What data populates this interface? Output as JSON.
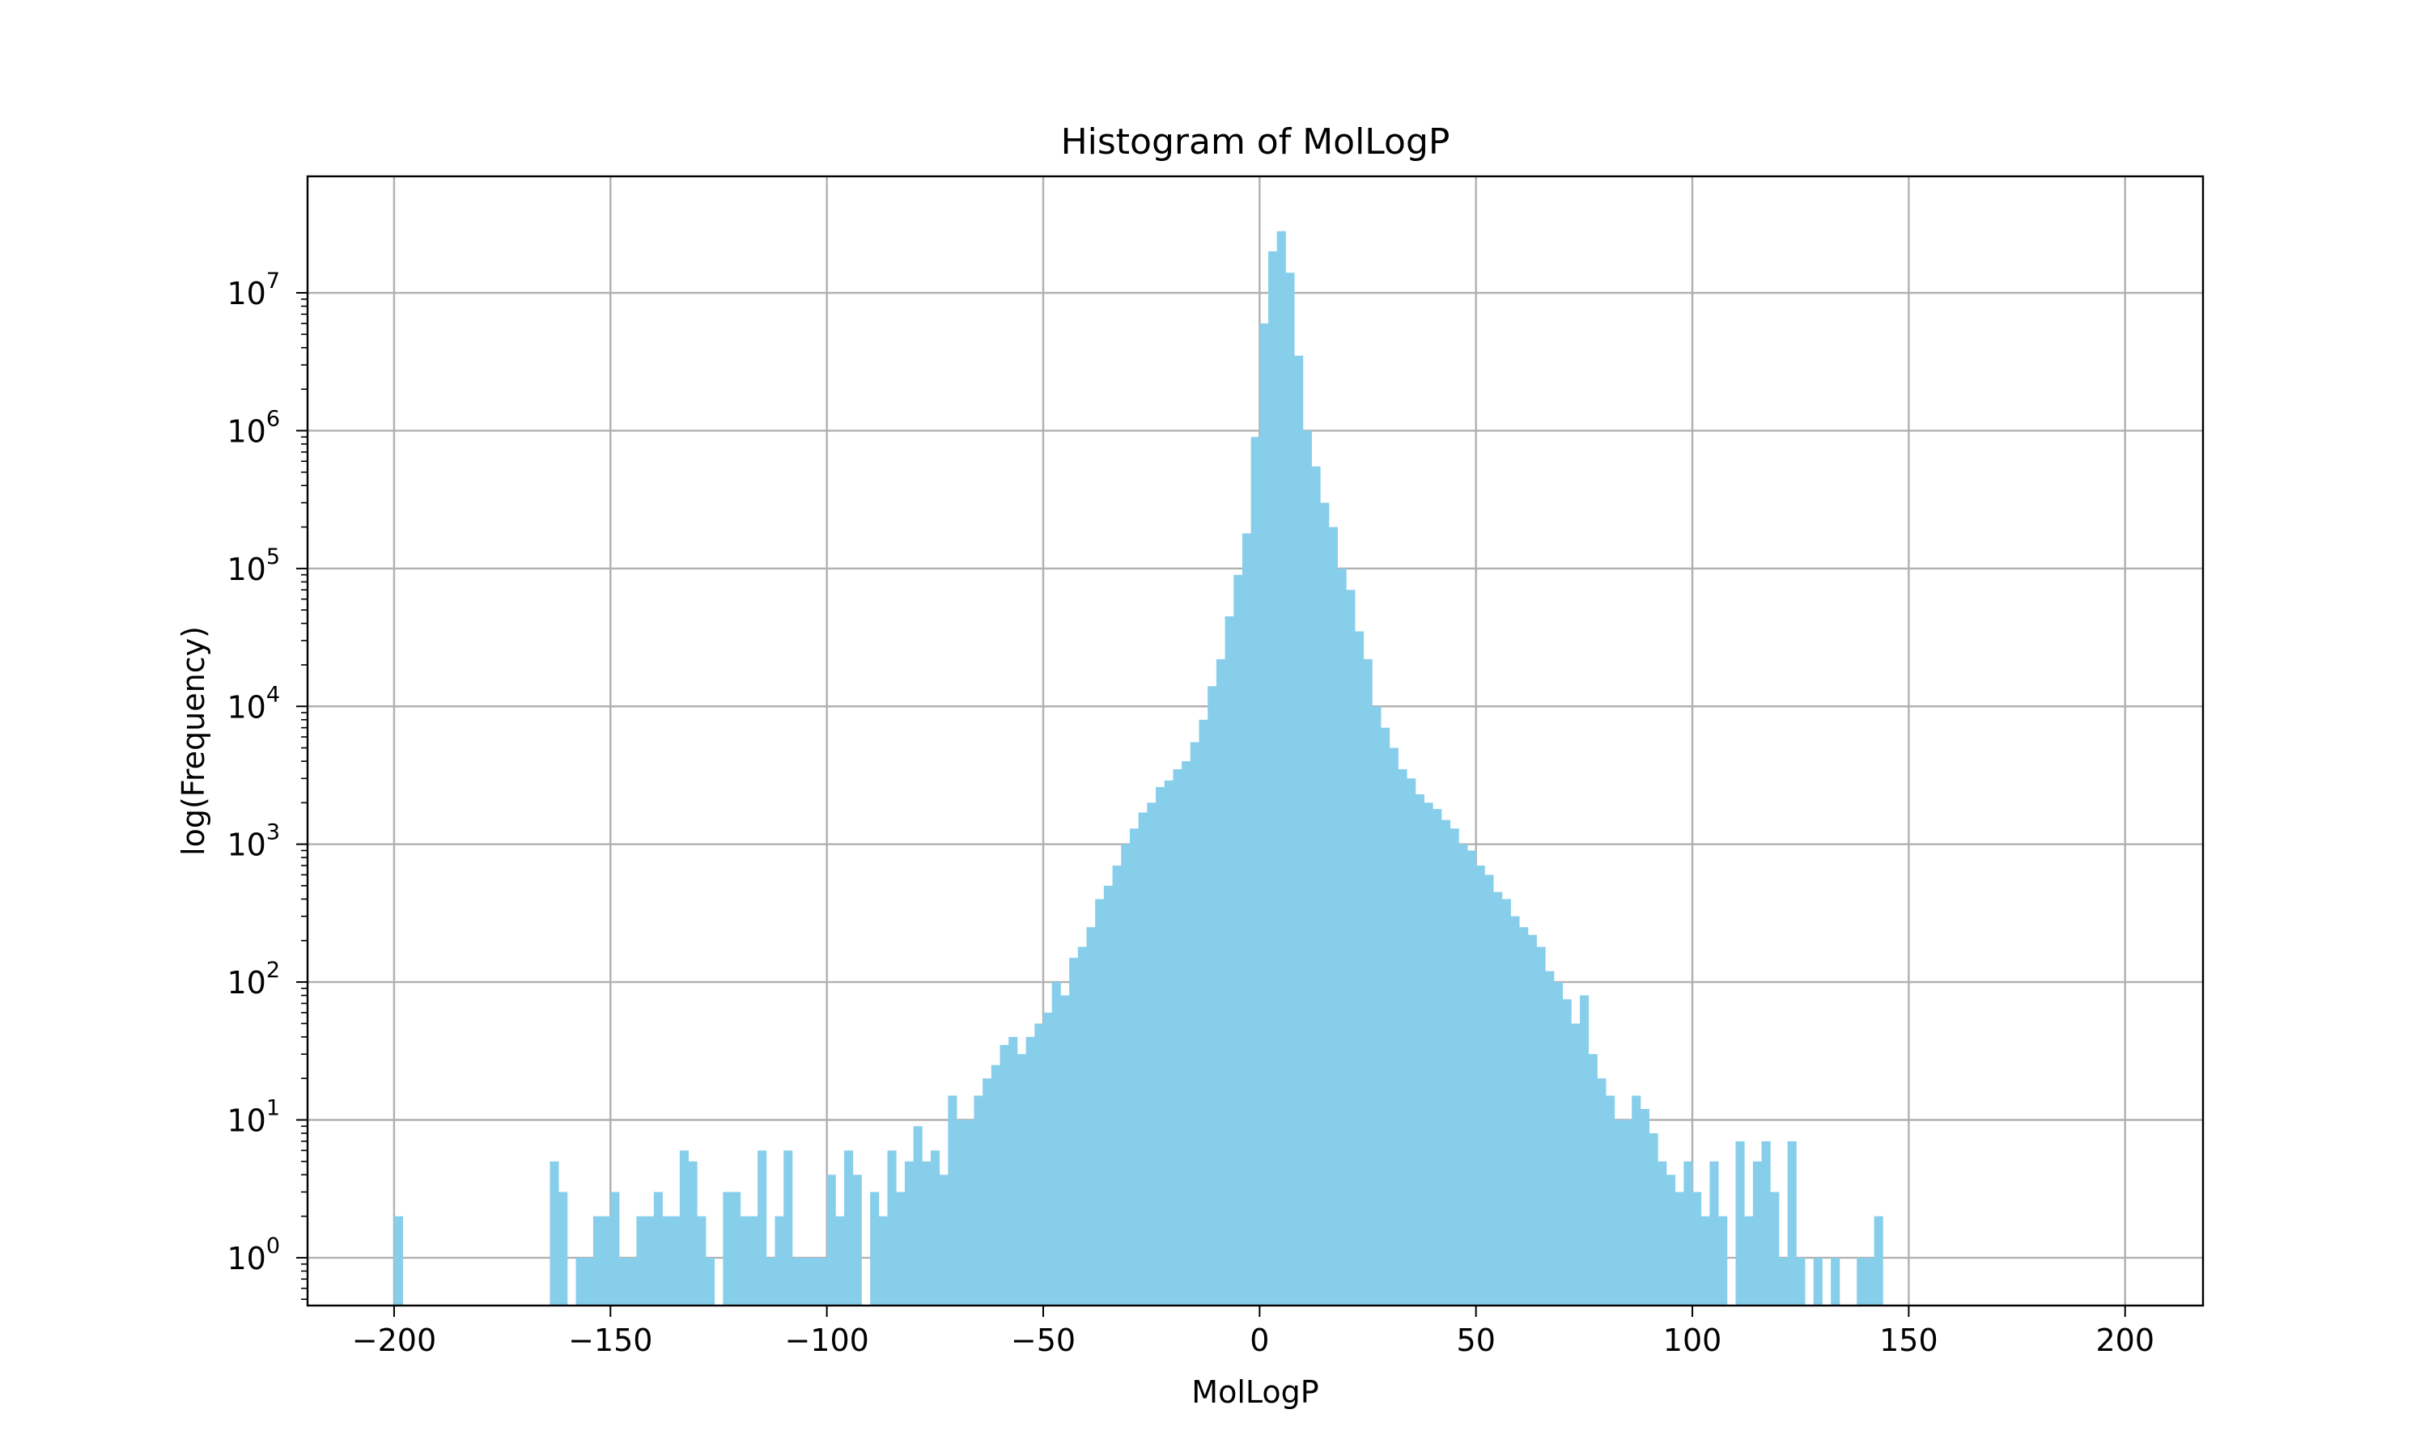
{
  "chart_data": {
    "type": "bar",
    "title": "Histogram of MolLogP",
    "xlabel": "MolLogP",
    "ylabel": "log(Frequency)",
    "xlim": [
      -220,
      218
    ],
    "ylim": [
      0.45,
      70000000
    ],
    "y_scale": "log",
    "grid": true,
    "bar_color": "#87ceeb",
    "bin_width": 2,
    "x_ticks": [
      -200,
      -150,
      -100,
      -50,
      0,
      50,
      100,
      150,
      200
    ],
    "x_tick_labels": [
      "−200",
      "−150",
      "−100",
      "−50",
      "0",
      "50",
      "100",
      "150",
      "200"
    ],
    "y_ticks": [
      1,
      10,
      100,
      1000,
      10000,
      100000,
      1000000,
      10000000
    ],
    "y_tick_labels": [
      {
        "base": "10",
        "exp": "0"
      },
      {
        "base": "10",
        "exp": "1"
      },
      {
        "base": "10",
        "exp": "2"
      },
      {
        "base": "10",
        "exp": "3"
      },
      {
        "base": "10",
        "exp": "4"
      },
      {
        "base": "10",
        "exp": "5"
      },
      {
        "base": "10",
        "exp": "6"
      },
      {
        "base": "10",
        "exp": "7"
      }
    ],
    "bins": [
      [
        -200,
        2
      ],
      [
        -164,
        5
      ],
      [
        -162,
        3
      ],
      [
        -158,
        1
      ],
      [
        -156,
        1
      ],
      [
        -154,
        2
      ],
      [
        -152,
        2
      ],
      [
        -150,
        3
      ],
      [
        -148,
        1
      ],
      [
        -146,
        1
      ],
      [
        -144,
        2
      ],
      [
        -142,
        2
      ],
      [
        -140,
        3
      ],
      [
        -138,
        2
      ],
      [
        -136,
        2
      ],
      [
        -134,
        6
      ],
      [
        -132,
        5
      ],
      [
        -130,
        2
      ],
      [
        -128,
        1
      ],
      [
        -124,
        3
      ],
      [
        -122,
        3
      ],
      [
        -120,
        2
      ],
      [
        -118,
        2
      ],
      [
        -116,
        6
      ],
      [
        -114,
        1
      ],
      [
        -112,
        2
      ],
      [
        -110,
        6
      ],
      [
        -108,
        1
      ],
      [
        -106,
        1
      ],
      [
        -104,
        1
      ],
      [
        -102,
        1
      ],
      [
        -100,
        4
      ],
      [
        -98,
        2
      ],
      [
        -96,
        6
      ],
      [
        -94,
        4
      ],
      [
        -90,
        3
      ],
      [
        -88,
        2
      ],
      [
        -86,
        6
      ],
      [
        -84,
        3
      ],
      [
        -82,
        5
      ],
      [
        -80,
        9
      ],
      [
        -78,
        5
      ],
      [
        -76,
        6
      ],
      [
        -74,
        4
      ],
      [
        -72,
        15
      ],
      [
        -70,
        10
      ],
      [
        -68,
        10
      ],
      [
        -66,
        15
      ],
      [
        -64,
        20
      ],
      [
        -62,
        25
      ],
      [
        -60,
        35
      ],
      [
        -58,
        40
      ],
      [
        -56,
        30
      ],
      [
        -54,
        40
      ],
      [
        -52,
        50
      ],
      [
        -50,
        60
      ],
      [
        -48,
        100
      ],
      [
        -46,
        80
      ],
      [
        -44,
        150
      ],
      [
        -42,
        180
      ],
      [
        -40,
        250
      ],
      [
        -38,
        400
      ],
      [
        -36,
        500
      ],
      [
        -34,
        700
      ],
      [
        -32,
        1000
      ],
      [
        -30,
        1300
      ],
      [
        -28,
        1700
      ],
      [
        -26,
        2000
      ],
      [
        -24,
        2600
      ],
      [
        -22,
        2900
      ],
      [
        -20,
        3500
      ],
      [
        -18,
        4000
      ],
      [
        -16,
        5500
      ],
      [
        -14,
        8000
      ],
      [
        -12,
        14000
      ],
      [
        -10,
        22000
      ],
      [
        -8,
        45000
      ],
      [
        -6,
        90000
      ],
      [
        -4,
        180000
      ],
      [
        -2,
        900000
      ],
      [
        0,
        6000000
      ],
      [
        2,
        20000000
      ],
      [
        4,
        28000000
      ],
      [
        6,
        14000000
      ],
      [
        8,
        3500000
      ],
      [
        10,
        1000000
      ],
      [
        12,
        550000
      ],
      [
        14,
        300000
      ],
      [
        16,
        200000
      ],
      [
        18,
        100000
      ],
      [
        20,
        70000
      ],
      [
        22,
        35000
      ],
      [
        24,
        22000
      ],
      [
        26,
        10000
      ],
      [
        28,
        7000
      ],
      [
        30,
        5000
      ],
      [
        32,
        3500
      ],
      [
        34,
        3000
      ],
      [
        36,
        2300
      ],
      [
        38,
        2000
      ],
      [
        40,
        1800
      ],
      [
        42,
        1500
      ],
      [
        44,
        1300
      ],
      [
        46,
        1000
      ],
      [
        48,
        900
      ],
      [
        50,
        700
      ],
      [
        52,
        600
      ],
      [
        54,
        450
      ],
      [
        56,
        400
      ],
      [
        58,
        300
      ],
      [
        60,
        250
      ],
      [
        62,
        220
      ],
      [
        64,
        180
      ],
      [
        66,
        120
      ],
      [
        68,
        100
      ],
      [
        70,
        75
      ],
      [
        72,
        50
      ],
      [
        74,
        80
      ],
      [
        76,
        30
      ],
      [
        78,
        20
      ],
      [
        80,
        15
      ],
      [
        82,
        10
      ],
      [
        84,
        10
      ],
      [
        86,
        15
      ],
      [
        88,
        12
      ],
      [
        90,
        8
      ],
      [
        92,
        5
      ],
      [
        94,
        4
      ],
      [
        96,
        3
      ],
      [
        98,
        5
      ],
      [
        100,
        3
      ],
      [
        102,
        2
      ],
      [
        104,
        5
      ],
      [
        106,
        2
      ],
      [
        110,
        7
      ],
      [
        112,
        2
      ],
      [
        114,
        5
      ],
      [
        116,
        7
      ],
      [
        118,
        3
      ],
      [
        120,
        1
      ],
      [
        122,
        7
      ],
      [
        124,
        1
      ],
      [
        128,
        1
      ],
      [
        132,
        1
      ],
      [
        138,
        1
      ],
      [
        140,
        1
      ],
      [
        142,
        2
      ]
    ]
  }
}
